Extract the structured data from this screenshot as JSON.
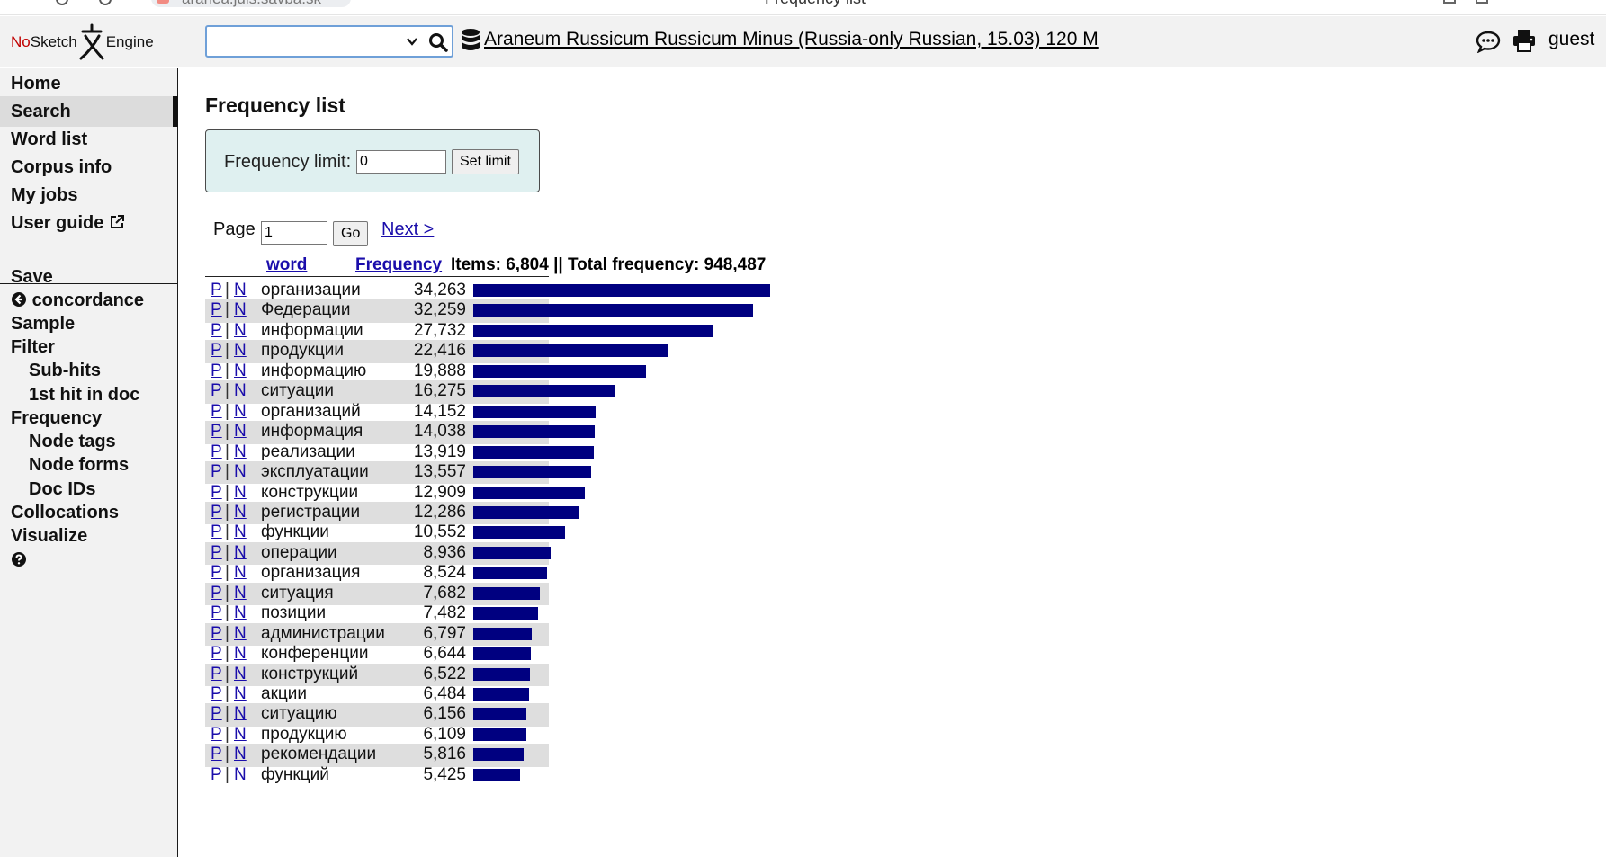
{
  "browser": {
    "url": "aranea.juls.savba.sk",
    "tab_title": "Frequency list"
  },
  "header": {
    "logo_no": "No",
    "logo_sketch": "Sketch",
    "logo_engine": "Engine",
    "search_value": "",
    "corpus_name": "Araneum Russicum Russicum Minus (Russia-only Russian, 15.03) 120 M",
    "user": "guest"
  },
  "sidebar": {
    "items": [
      {
        "label": "Home"
      },
      {
        "label": "Search"
      },
      {
        "label": "Word list"
      },
      {
        "label": "Corpus info"
      },
      {
        "label": "My jobs"
      },
      {
        "label": "User guide"
      }
    ],
    "actions": [
      {
        "label": "Save"
      },
      {
        "label": "concordance"
      },
      {
        "label": "Sample"
      },
      {
        "label": "Filter"
      },
      {
        "label": "Sub-hits"
      },
      {
        "label": "1st hit in doc"
      },
      {
        "label": "Frequency"
      },
      {
        "label": "Node tags"
      },
      {
        "label": "Node forms"
      },
      {
        "label": "Doc IDs"
      },
      {
        "label": "Collocations"
      },
      {
        "label": "Visualize"
      }
    ],
    "active": "Search"
  },
  "main": {
    "title": "Frequency list",
    "frequency_limit_label": "Frequency limit:",
    "frequency_limit_value": "0",
    "set_limit_button": "Set limit",
    "page_label": "Page",
    "page_value": "1",
    "go_button": "Go",
    "next_link": "Next >",
    "table": {
      "col_word": "word",
      "col_frequency": "Frequency",
      "summary": "Items: 6,804 || Total frequency: 948,487",
      "p_label": "P",
      "sep": "|",
      "n_label": "N",
      "rows": [
        {
          "word": "организации",
          "freq": "34,263",
          "value": 34263
        },
        {
          "word": "Федерации",
          "freq": "32,259",
          "value": 32259
        },
        {
          "word": "информации",
          "freq": "27,732",
          "value": 27732
        },
        {
          "word": "продукции",
          "freq": "22,416",
          "value": 22416
        },
        {
          "word": "информацию",
          "freq": "19,888",
          "value": 19888
        },
        {
          "word": "ситуации",
          "freq": "16,275",
          "value": 16275
        },
        {
          "word": "организаций",
          "freq": "14,152",
          "value": 14152
        },
        {
          "word": "информация",
          "freq": "14,038",
          "value": 14038
        },
        {
          "word": "реализации",
          "freq": "13,919",
          "value": 13919
        },
        {
          "word": "эксплуатации",
          "freq": "13,557",
          "value": 13557
        },
        {
          "word": "конструкции",
          "freq": "12,909",
          "value": 12909
        },
        {
          "word": "регистрации",
          "freq": "12,286",
          "value": 12286
        },
        {
          "word": "функции",
          "freq": "10,552",
          "value": 10552
        },
        {
          "word": "операции",
          "freq": "8,936",
          "value": 8936
        },
        {
          "word": "организация",
          "freq": "8,524",
          "value": 8524
        },
        {
          "word": "ситуация",
          "freq": "7,682",
          "value": 7682
        },
        {
          "word": "позиции",
          "freq": "7,482",
          "value": 7482
        },
        {
          "word": "администрации",
          "freq": "6,797",
          "value": 6797
        },
        {
          "word": "конференции",
          "freq": "6,644",
          "value": 6644
        },
        {
          "word": "конструкций",
          "freq": "6,522",
          "value": 6522
        },
        {
          "word": "акции",
          "freq": "6,484",
          "value": 6484
        },
        {
          "word": "ситуацию",
          "freq": "6,156",
          "value": 6156
        },
        {
          "word": "продукцию",
          "freq": "6,109",
          "value": 6109
        },
        {
          "word": "рекомендации",
          "freq": "5,816",
          "value": 5816
        },
        {
          "word": "функций",
          "freq": "5,425",
          "value": 5425
        }
      ]
    },
    "bar_color": "#000080"
  }
}
